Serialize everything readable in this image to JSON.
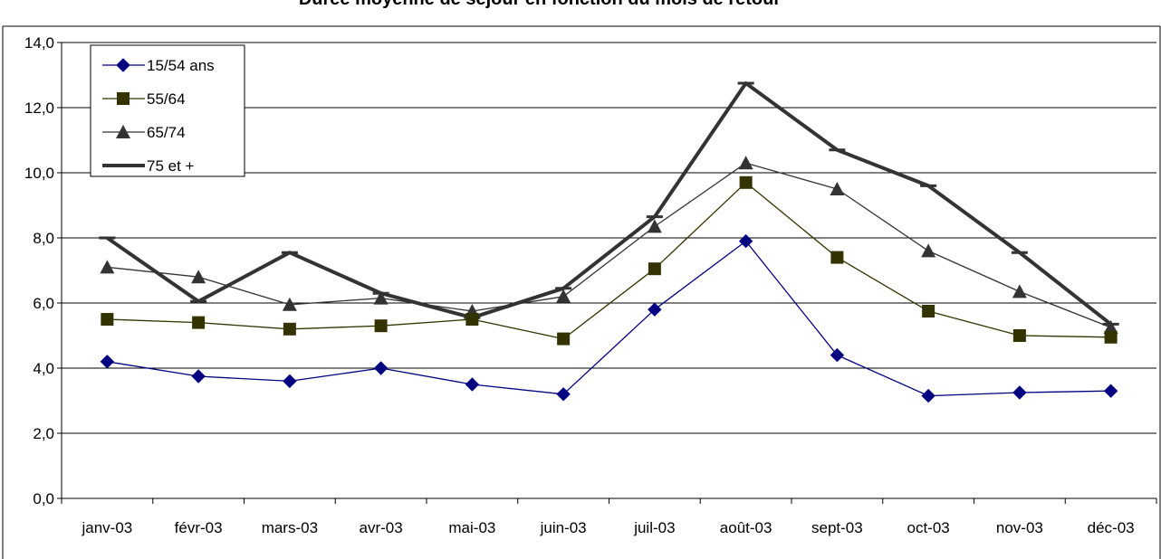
{
  "chart_data": {
    "type": "line",
    "title": "Durée moyenne de séjour en fonction du mois de retour",
    "categories": [
      "janv-03",
      "févr-03",
      "mars-03",
      "avr-03",
      "mai-03",
      "juin-03",
      "juil-03",
      "août-03",
      "sept-03",
      "oct-03",
      "nov-03",
      "déc-03"
    ],
    "ylim": [
      0,
      14
    ],
    "yticks": [
      "0,0",
      "2,0",
      "4,0",
      "6,0",
      "8,0",
      "10,0",
      "12,0",
      "14,0"
    ],
    "grid": true,
    "legend_position": "top-left",
    "series": [
      {
        "name": "15/54 ans",
        "marker": "diamond",
        "color": "#000080",
        "values": [
          4.2,
          3.75,
          3.6,
          4.0,
          3.5,
          3.2,
          5.8,
          7.9,
          4.4,
          3.15,
          3.25,
          3.3
        ]
      },
      {
        "name": "55/64",
        "marker": "square",
        "color": "#333300",
        "values": [
          5.5,
          5.4,
          5.2,
          5.3,
          5.5,
          4.9,
          7.05,
          9.7,
          7.4,
          5.75,
          5.0,
          4.95
        ]
      },
      {
        "name": "65/74",
        "marker": "triangle",
        "color": "#333333",
        "values": [
          7.1,
          6.8,
          5.95,
          6.15,
          5.75,
          6.2,
          8.35,
          10.3,
          9.5,
          7.6,
          6.35,
          5.25
        ]
      },
      {
        "name": "75 et +",
        "marker": "dash",
        "color": "#333333",
        "values": [
          8.0,
          6.05,
          7.55,
          6.3,
          5.55,
          6.45,
          8.65,
          12.75,
          10.7,
          9.6,
          7.55,
          5.35
        ]
      }
    ]
  }
}
